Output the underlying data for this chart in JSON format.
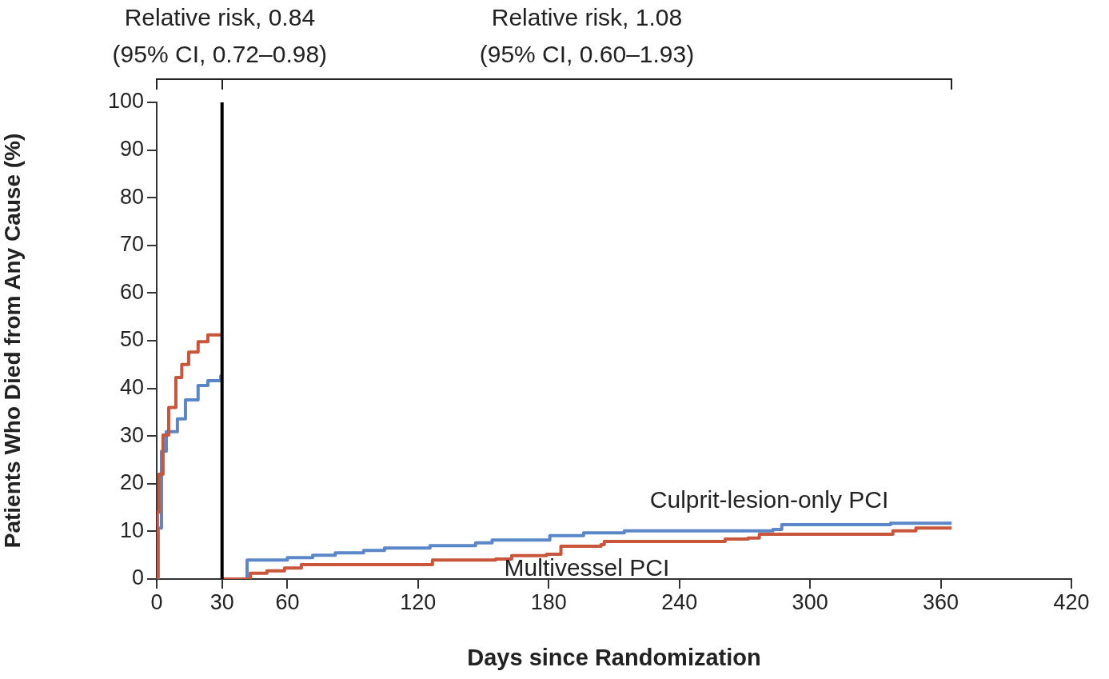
{
  "chart_data": {
    "type": "step",
    "xlabel": "Days since Randomization",
    "ylabel": "Patients Who Died from Any Cause (%)",
    "xlim": [
      0,
      420
    ],
    "xticks": [
      0,
      30,
      60,
      120,
      180,
      240,
      300,
      360,
      420
    ],
    "ylim": [
      0,
      100
    ],
    "yticks": [
      0,
      10,
      20,
      30,
      40,
      50,
      60,
      70,
      80,
      90,
      100
    ],
    "grid": false,
    "legend": false,
    "marker": "none",
    "line_style": "solid",
    "ref_lines": [
      {
        "axis": "x",
        "value": 30,
        "color": "#000000"
      }
    ],
    "annotations": [
      "Relative risk, 0.84\n(95% CI, 0.72–0.98)",
      "Relative risk, 1.08\n(95% CI, 0.60–1.93)"
    ],
    "series": [
      {
        "color": "#c9553a",
        "x": [
          0,
          0.3,
          1,
          2.9,
          5.5,
          8.8,
          11.5,
          14.7,
          19,
          23.5,
          30
        ],
        "values": [
          0,
          14,
          22,
          30.2,
          36,
          42.3,
          45,
          47.6,
          49.8,
          51.2,
          51.2
        ]
      },
      {
        "color": "#5b87c9",
        "x": [
          0,
          0.7,
          2.2,
          4.4,
          9.5,
          13.2,
          19,
          23.5,
          29.4,
          30
        ],
        "values": [
          0,
          10.7,
          26.8,
          30.9,
          33.6,
          37.6,
          40.6,
          41.6,
          42.6,
          42.6
        ]
      },
      {
        "name": "Multivessel PCI",
        "color": "#c9553a",
        "x": [
          30,
          43,
          50.6,
          58.7,
          66.4,
          120,
          126.6,
          155.6,
          163,
          179,
          185.6,
          204,
          205.5,
          260,
          261,
          271.6,
          276.7,
          337,
          338,
          348.6,
          365
        ],
        "values": [
          0,
          1.2,
          1.7,
          2.3,
          3.0,
          3.0,
          4.0,
          4.2,
          4.9,
          5.2,
          6.9,
          7.2,
          7.9,
          7.9,
          8.4,
          8.6,
          9.4,
          9.4,
          10.1,
          10.7,
          10.7
        ]
      },
      {
        "name": "Culprit-lesion-only PCI",
        "color": "#5b87c9",
        "x": [
          30,
          41.5,
          60,
          71.6,
          82,
          95,
          104.6,
          125.5,
          146.4,
          154,
          180.5,
          196,
          214.7,
          283,
          287,
          336,
          337,
          365
        ],
        "values": [
          0,
          4.0,
          4.5,
          5.0,
          5.5,
          6.0,
          6.5,
          7.0,
          7.6,
          8.2,
          9.1,
          9.7,
          10.1,
          10.4,
          11.4,
          11.4,
          11.7,
          11.7
        ]
      }
    ]
  }
}
